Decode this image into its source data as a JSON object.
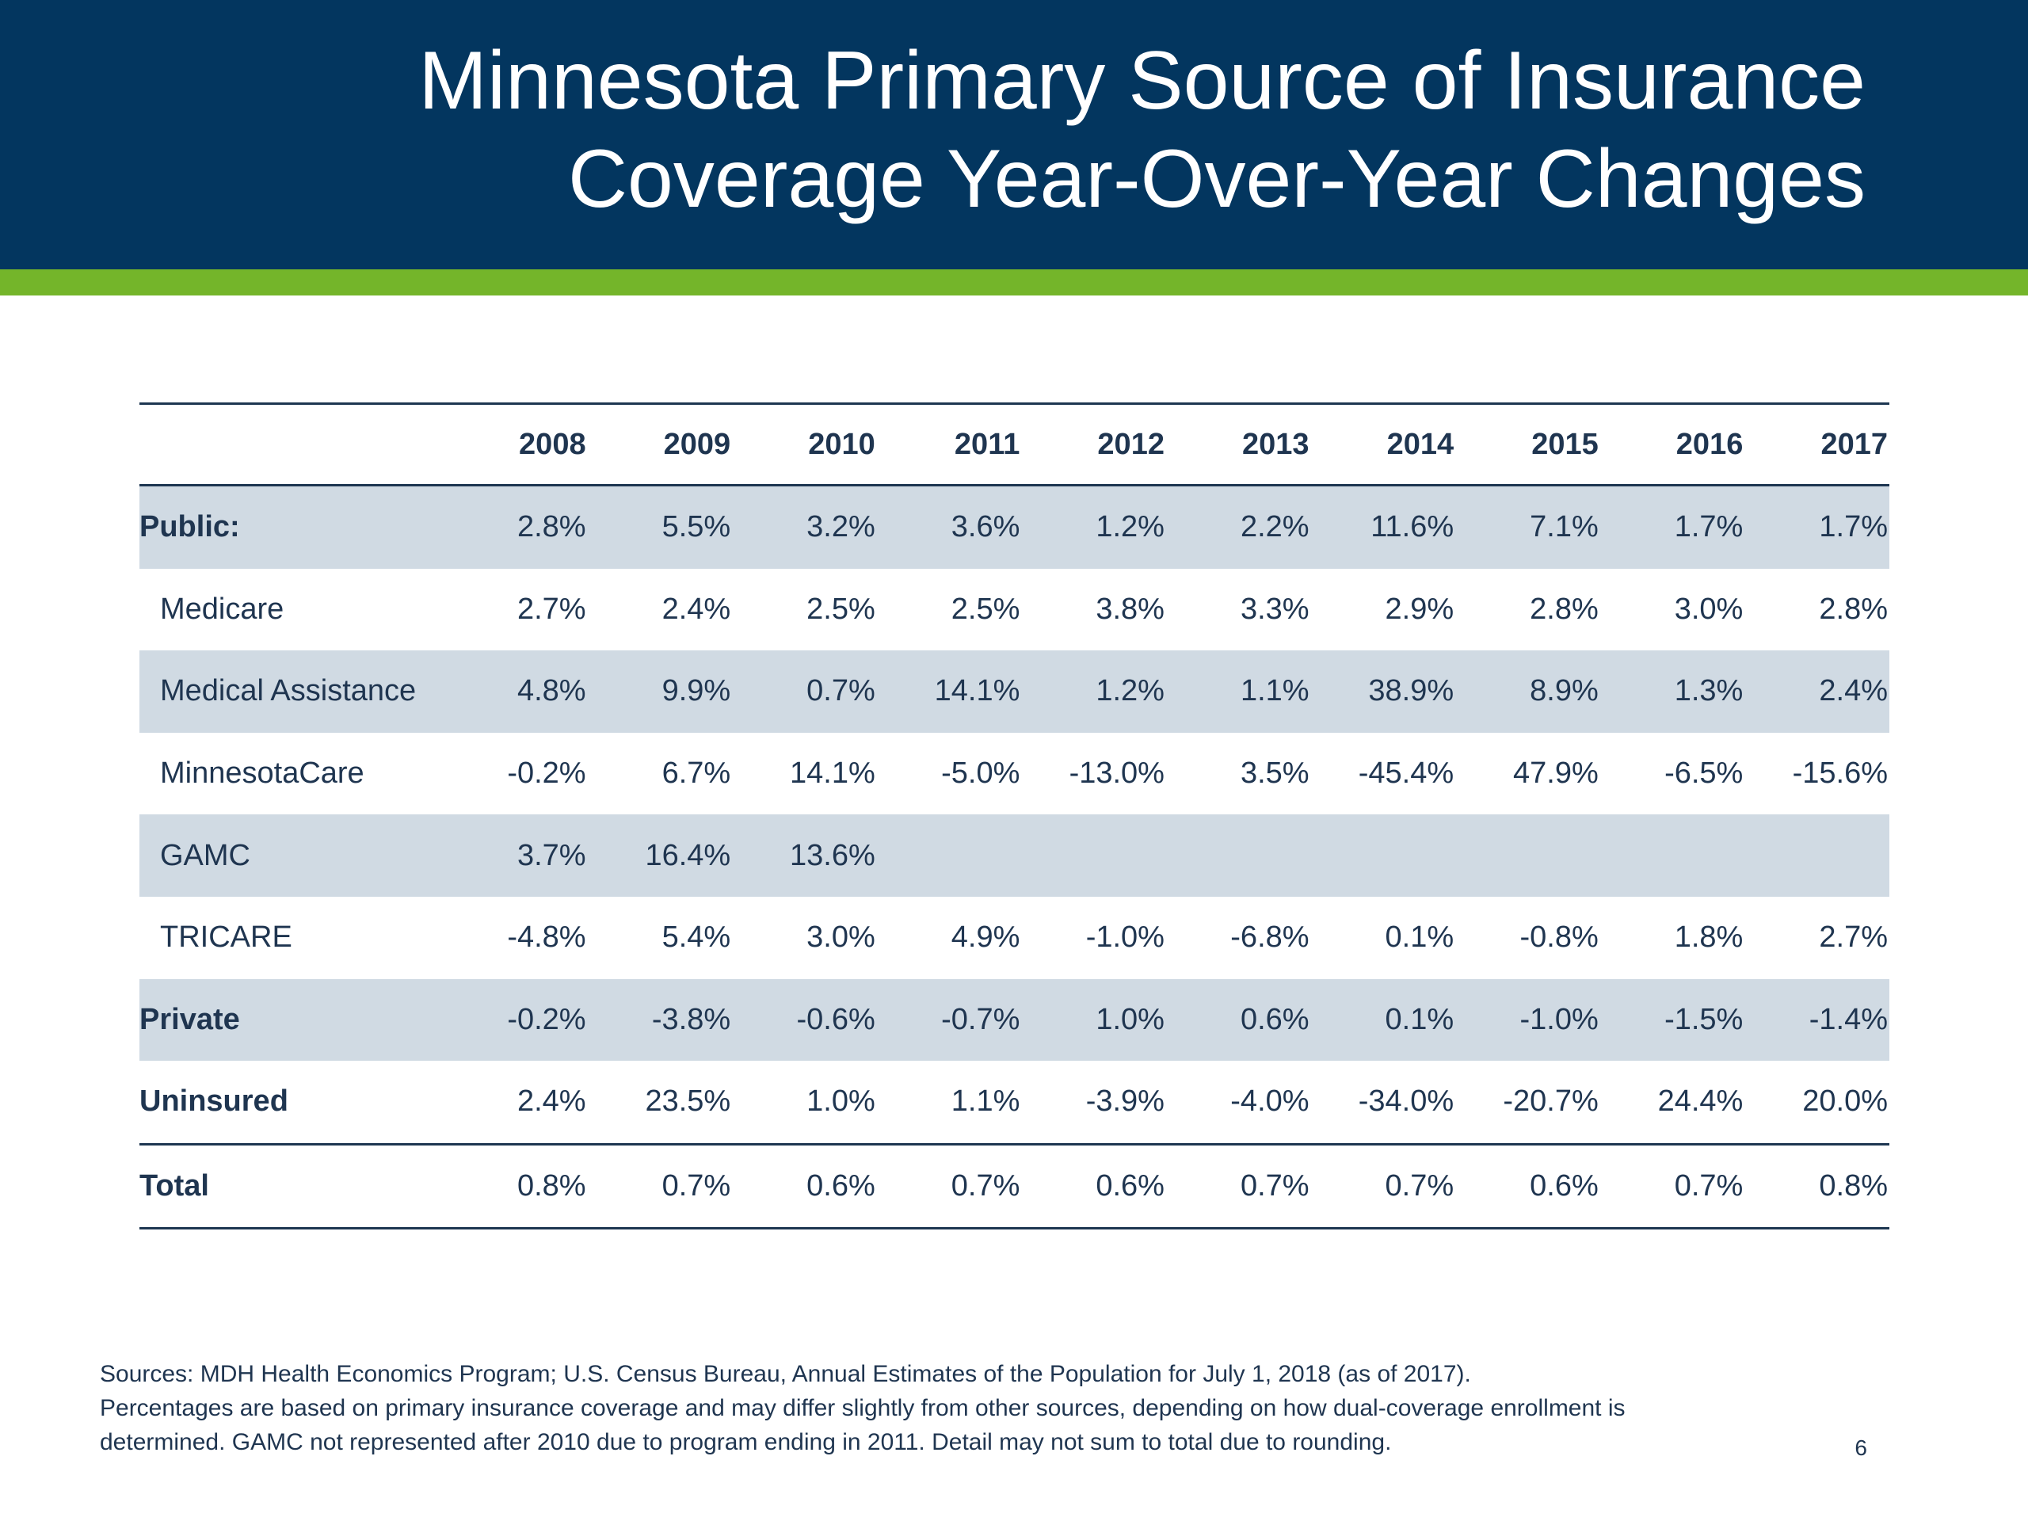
{
  "header": {
    "title_line1": "Minnesota Primary Source of Insurance",
    "title_line2": "Coverage Year-Over-Year Changes"
  },
  "colors": {
    "header_background": "#03365f",
    "accent_bar": "#74b52a",
    "shaded_row": "#d0dae3",
    "text": "#1f3550"
  },
  "table": {
    "years": [
      "2008",
      "2009",
      "2010",
      "2011",
      "2012",
      "2013",
      "2014",
      "2015",
      "2016",
      "2017"
    ],
    "rows": [
      {
        "label": "Public:",
        "values": [
          "2.8%",
          "5.5%",
          "3.2%",
          "3.6%",
          "1.2%",
          "2.2%",
          "11.6%",
          "7.1%",
          "1.7%",
          "1.7%"
        ]
      },
      {
        "label": "Medicare",
        "values": [
          "2.7%",
          "2.4%",
          "2.5%",
          "2.5%",
          "3.8%",
          "3.3%",
          "2.9%",
          "2.8%",
          "3.0%",
          "2.8%"
        ]
      },
      {
        "label": "Medical Assistance",
        "values": [
          "4.8%",
          "9.9%",
          "0.7%",
          "14.1%",
          "1.2%",
          "1.1%",
          "38.9%",
          "8.9%",
          "1.3%",
          "2.4%"
        ]
      },
      {
        "label": "MinnesotaCare",
        "values": [
          "-0.2%",
          "6.7%",
          "14.1%",
          "-5.0%",
          "-13.0%",
          "3.5%",
          "-45.4%",
          "47.9%",
          "-6.5%",
          "-15.6%"
        ]
      },
      {
        "label": "GAMC",
        "values": [
          "3.7%",
          "16.4%",
          "13.6%",
          "",
          "",
          "",
          "",
          "",
          "",
          ""
        ]
      },
      {
        "label": "TRICARE",
        "values": [
          "-4.8%",
          "5.4%",
          "3.0%",
          "4.9%",
          "-1.0%",
          "-6.8%",
          "0.1%",
          "-0.8%",
          "1.8%",
          "2.7%"
        ]
      },
      {
        "label": "Private",
        "values": [
          "-0.2%",
          "-3.8%",
          "-0.6%",
          "-0.7%",
          "1.0%",
          "0.6%",
          "0.1%",
          "-1.0%",
          "-1.5%",
          "-1.4%"
        ]
      },
      {
        "label": "Uninsured",
        "values": [
          "2.4%",
          "23.5%",
          "1.0%",
          "1.1%",
          "-3.9%",
          "-4.0%",
          "-34.0%",
          "-20.7%",
          "24.4%",
          "20.0%"
        ]
      },
      {
        "label": "Total",
        "values": [
          "0.8%",
          "0.7%",
          "0.6%",
          "0.7%",
          "0.6%",
          "0.7%",
          "0.7%",
          "0.6%",
          "0.7%",
          "0.8%"
        ]
      }
    ]
  },
  "footnote": {
    "line1": "Sources: MDH Health Economics Program; U.S. Census Bureau, Annual Estimates of the Population for July 1, 2018 (as of 2017).",
    "line2": "Percentages are based on primary insurance coverage and may differ slightly from other sources, depending on how dual-coverage enrollment is",
    "line3": "determined. GAMC not represented after 2010 due to program ending in 2011. Detail may not sum to total due to rounding."
  },
  "page_number": "6"
}
